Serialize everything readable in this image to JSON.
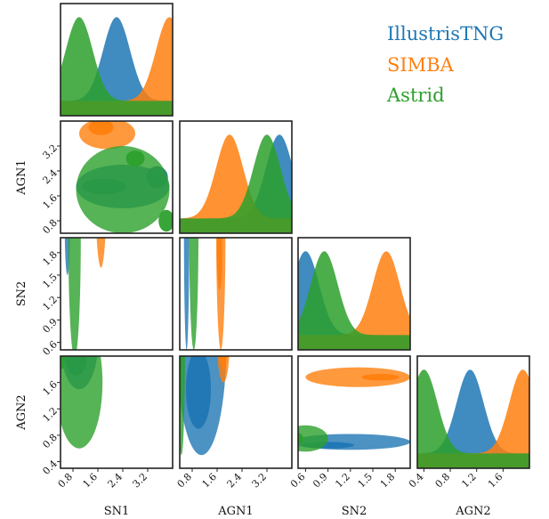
{
  "chart_data": {
    "type": "corner",
    "parameters": [
      "SN1",
      "AGN1",
      "SN2",
      "AGN2"
    ],
    "axis_labels": {
      "x": [
        "SN1",
        "AGN1",
        "SN2",
        "AGN2"
      ],
      "y": [
        "AGN1",
        "SN2",
        "AGN2"
      ]
    },
    "ranges": {
      "SN1": [
        0.4,
        4.0
      ],
      "AGN1": [
        0.4,
        4.0
      ],
      "SN2": [
        0.5,
        2.0
      ],
      "AGN2": [
        0.3,
        2.0
      ]
    },
    "ticks": {
      "SN1": [
        0.8,
        1.6,
        2.4,
        3.2
      ],
      "AGN1": [
        0.8,
        1.6,
        2.4,
        3.2
      ],
      "SN2": [
        0.6,
        0.9,
        1.2,
        1.5,
        1.8
      ],
      "AGN2": [
        0.4,
        0.8,
        1.2,
        1.6
      ]
    },
    "tick_labels": {
      "SN1": [
        "0.8",
        "1.6",
        "2.4",
        "3.2"
      ],
      "AGN1": [
        "0.8",
        "1.6",
        "2.4",
        "3.2"
      ],
      "SN2": [
        "0.6",
        "0.9",
        "1.2",
        "1.5",
        "1.8"
      ],
      "AGN2": [
        "0.4",
        "0.8",
        "1.2",
        "1.6"
      ]
    },
    "legend": {
      "placement": "top-right",
      "entries": [
        "IllustrisTNG",
        "SIMBA",
        "Astrid"
      ]
    },
    "series": [
      {
        "name": "IllustrisTNG",
        "color": "#1f77b4",
        "marginal_peaks": {
          "SN1": 2.2,
          "AGN1": 3.6,
          "SN2": 0.6,
          "AGN2": 1.1
        },
        "blobs": [
          {
            "x": "AGN1",
            "y": "SN1",
            "cx": 1.9,
            "cy": 2.4,
            "rx": 0.7,
            "ry": 1.5
          },
          {
            "x": "AGN1",
            "y": "SN1",
            "cx": 1.9,
            "cy": 1.8,
            "rx": 0.25,
            "ry": 0.7,
            "dense": true
          },
          {
            "x": "AGN1",
            "y": "SN1",
            "cx": 2.2,
            "cy": 3.5,
            "rx": 0.35,
            "ry": 0.35,
            "dense": true
          },
          {
            "x": "SN2",
            "y": "SN1",
            "cx": 2.2,
            "cy": 0.62,
            "rx": 0.7,
            "ry": 0.08
          },
          {
            "x": "SN2",
            "y": "AGN1",
            "cx": 2.2,
            "cy": 0.62,
            "rx": 1.7,
            "ry": 0.08
          },
          {
            "x": "AGN2",
            "y": "SN1",
            "cx": 2.2,
            "cy": 1.0,
            "rx": 0.7,
            "ry": 0.6
          },
          {
            "x": "AGN2",
            "y": "SN1",
            "cx": 2.0,
            "cy": 0.9,
            "rx": 0.3,
            "ry": 0.35,
            "dense": true
          },
          {
            "x": "AGN2",
            "y": "AGN1",
            "cx": 2.2,
            "cy": 1.1,
            "rx": 1.7,
            "ry": 0.8
          },
          {
            "x": "AGN2",
            "y": "AGN1",
            "cx": 1.5,
            "cy": 1.0,
            "rx": 0.6,
            "ry": 0.4,
            "dense": true
          },
          {
            "x": "AGN2",
            "y": "SN2",
            "cx": 0.7,
            "cy": 1.2,
            "rx": 0.12,
            "ry": 0.8
          },
          {
            "x": "AGN2",
            "y": "SN2",
            "cx": 0.65,
            "cy": 0.9,
            "rx": 0.05,
            "ry": 0.35,
            "dense": true
          }
        ]
      },
      {
        "name": "SIMBA",
        "color": "#ff7f0e",
        "marginal_peaks": {
          "SN1": 3.9,
          "AGN1": 2.0,
          "SN2": 1.68,
          "AGN2": 1.9
        },
        "blobs": [
          {
            "x": "AGN1",
            "y": "SN1",
            "cx": 3.6,
            "cy": 1.9,
            "rx": 0.5,
            "ry": 0.9
          },
          {
            "x": "AGN1",
            "y": "SN1",
            "cx": 3.8,
            "cy": 1.7,
            "rx": 0.25,
            "ry": 0.4,
            "dense": true
          },
          {
            "x": "SN2",
            "y": "SN1",
            "cx": 3.0,
            "cy": 1.7,
            "rx": 1.4,
            "ry": 0.2
          },
          {
            "x": "SN2",
            "y": "SN1",
            "cx": 3.8,
            "cy": 1.65,
            "rx": 0.3,
            "ry": 0.08,
            "dense": true
          },
          {
            "x": "SN2",
            "y": "AGN1",
            "cx": 2.2,
            "cy": 1.72,
            "rx": 1.7,
            "ry": 0.15
          },
          {
            "x": "SN2",
            "y": "AGN1",
            "cx": 1.8,
            "cy": 1.68,
            "rx": 0.5,
            "ry": 0.06,
            "dense": true
          },
          {
            "x": "AGN2",
            "y": "SN1",
            "cx": 3.6,
            "cy": 1.5,
            "rx": 0.45,
            "ry": 0.45
          },
          {
            "x": "AGN2",
            "y": "SN1",
            "cx": 3.7,
            "cy": 1.7,
            "rx": 0.2,
            "ry": 0.2,
            "dense": true
          },
          {
            "x": "AGN2",
            "y": "AGN1",
            "cx": 2.2,
            "cy": 1.8,
            "rx": 0.6,
            "ry": 0.2
          },
          {
            "x": "AGN2",
            "y": "AGN1",
            "cx": 2.2,
            "cy": 1.8,
            "rx": 0.4,
            "ry": 0.12,
            "dense": true
          },
          {
            "x": "AGN2",
            "y": "SN2",
            "cx": 1.68,
            "cy": 1.3,
            "rx": 0.15,
            "ry": 0.7
          },
          {
            "x": "AGN2",
            "y": "SN2",
            "cx": 1.68,
            "cy": 1.6,
            "rx": 0.05,
            "ry": 0.25,
            "dense": true
          }
        ]
      },
      {
        "name": "Astrid",
        "color": "#2ca02c",
        "marginal_peaks": {
          "SN1": 1.0,
          "AGN1": 3.2,
          "SN2": 0.85,
          "AGN2": 0.4
        },
        "blobs": [
          {
            "x": "AGN1",
            "y": "SN1",
            "cx": 1.8,
            "cy": 2.4,
            "rx": 1.4,
            "ry": 1.5
          },
          {
            "x": "AGN1",
            "y": "SN1",
            "cx": 0.8,
            "cy": 3.8,
            "rx": 0.35,
            "ry": 0.25,
            "dense": true
          },
          {
            "x": "AGN1",
            "y": "SN1",
            "cx": 2.8,
            "cy": 2.8,
            "rx": 0.25,
            "ry": 0.3,
            "dense": true
          },
          {
            "x": "SN2",
            "y": "SN1",
            "cx": 2.0,
            "cy": 0.85,
            "rx": 1.6,
            "ry": 0.2
          },
          {
            "x": "SN2",
            "y": "SN1",
            "cx": 2.4,
            "cy": 0.85,
            "rx": 0.4,
            "ry": 0.06,
            "dense": true
          },
          {
            "x": "SN2",
            "y": "AGN1",
            "cx": 2.2,
            "cy": 0.85,
            "rx": 1.7,
            "ry": 0.15
          },
          {
            "x": "SN2",
            "y": "AGN1",
            "cx": 2.8,
            "cy": 0.85,
            "rx": 0.4,
            "ry": 0.05,
            "dense": true
          },
          {
            "x": "AGN2",
            "y": "SN1",
            "cx": 1.6,
            "cy": 1.0,
            "rx": 1.0,
            "ry": 0.75
          },
          {
            "x": "AGN2",
            "y": "SN1",
            "cx": 2.4,
            "cy": 0.45,
            "rx": 0.6,
            "ry": 0.12,
            "dense": true
          },
          {
            "x": "AGN2",
            "y": "AGN1",
            "cx": 2.2,
            "cy": 0.45,
            "rx": 1.7,
            "ry": 0.12
          },
          {
            "x": "AGN2",
            "y": "AGN1",
            "cx": 2.4,
            "cy": 0.4,
            "rx": 1.2,
            "ry": 0.06,
            "dense": true
          },
          {
            "x": "AGN2",
            "y": "SN2",
            "cx": 0.75,
            "cy": 0.6,
            "rx": 0.2,
            "ry": 0.3
          },
          {
            "x": "AGN2",
            "y": "SN2",
            "cx": 0.75,
            "cy": 0.45,
            "rx": 0.1,
            "ry": 0.12,
            "dense": true
          }
        ]
      }
    ]
  }
}
